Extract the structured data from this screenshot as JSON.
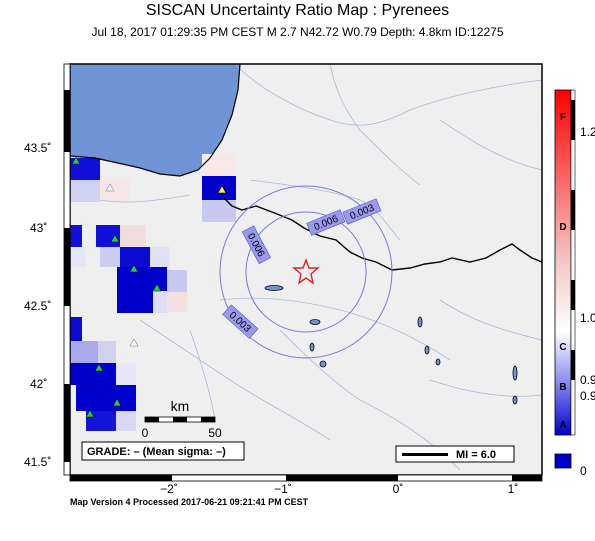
{
  "header": {
    "title": "SISCAN Uncertainty Ratio Map : Pyrenees",
    "subtitle": "Jul 18, 2017 01:29:35 PM CEST   M 2.7   N42.72 W0.79   Depth: 4.8km   ID:12275"
  },
  "footer": {
    "version": "Map Version 4 Processed 2017-06-21 09:21:41 PM CEST"
  },
  "axes": {
    "lon_labels": [
      "−2˚",
      "−1˚",
      "0˚",
      "1˚"
    ],
    "lat_labels": [
      "43.5˚",
      "43˚",
      "42.5˚",
      "42˚",
      "41.5˚"
    ]
  },
  "scalebar": {
    "title": "km",
    "left": "0",
    "right": "50"
  },
  "grade_box": {
    "text": "GRADE: – (Mean sigma: –)"
  },
  "mi_box": {
    "text": "MI = 6.0"
  },
  "contours": [
    "0.003",
    "0.006",
    "0.006",
    "0.003"
  ],
  "colorbar": {
    "letters": [
      "F",
      "D",
      "C",
      "B",
      "A"
    ],
    "values": [
      "1.2",
      "1.0",
      "0.9",
      "0.9",
      "0"
    ]
  },
  "colors": {
    "sea": "#6f95d6",
    "land": "#efefef",
    "contour": "#7777dd",
    "epicenter": "#e02020",
    "station": "#22cc44"
  }
}
